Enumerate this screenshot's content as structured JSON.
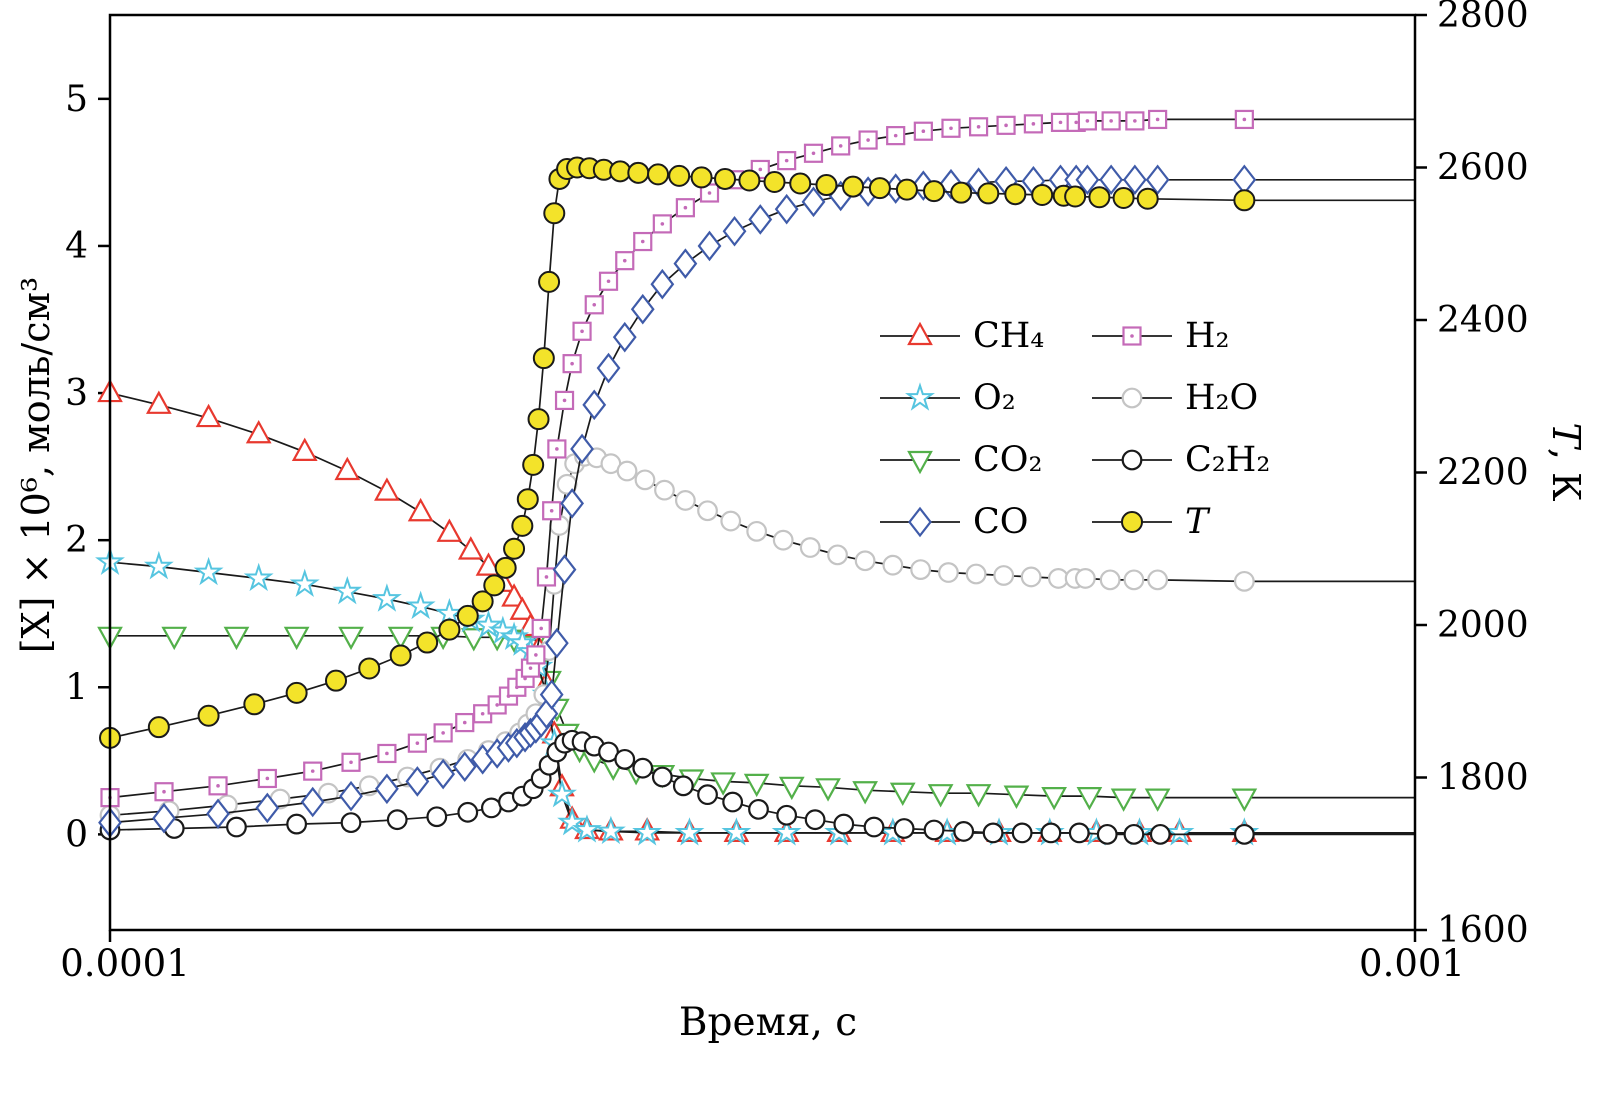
{
  "chart_data": {
    "type": "line",
    "title": "",
    "xlabel": "Время, с",
    "ylabel_left": "[X] × 10⁶, моль/см³",
    "ylabel_right_italic": "T",
    "ylabel_right_rest": ", К",
    "x_scale": "log",
    "x_min": 0.0001,
    "x_max": 0.001,
    "x_unit": 0.0001,
    "x_tick_labels": [
      "0.0001",
      "0.001"
    ],
    "x_tick_values": [
      0.0001,
      0.001
    ],
    "y_left_min": -0.65,
    "y_left_max": 5.57,
    "y_left_ticks": [
      0,
      1,
      2,
      3,
      4,
      5
    ],
    "y_right_min": 1600,
    "y_right_max": 2800,
    "y_right_ticks": [
      1600,
      1800,
      2000,
      2200,
      2400,
      2600,
      2800
    ],
    "grid": false,
    "legend_position": "center-right",
    "line_color": "#1a1a1a",
    "series": [
      {
        "name": "CO2",
        "label": "CO₂",
        "marker": "triangle-down",
        "color": "#53b04a",
        "axis": "left",
        "x": [
          1.0,
          1.12,
          1.25,
          1.39,
          1.53,
          1.67,
          1.8,
          1.9,
          1.98,
          2.04,
          2.08,
          2.11,
          2.14,
          2.17,
          2.2,
          2.24,
          2.29,
          2.35,
          2.43,
          2.53,
          2.65,
          2.79,
          2.95,
          3.13,
          3.33,
          3.55,
          3.79,
          4.05,
          4.33,
          4.63,
          4.95,
          5.29,
          5.63,
          5.98,
          6.35,
          7.4
        ],
        "y": [
          1.35,
          1.35,
          1.35,
          1.35,
          1.35,
          1.35,
          1.35,
          1.34,
          1.34,
          1.33,
          1.32,
          1.29,
          1.2,
          1.05,
          0.86,
          0.69,
          0.58,
          0.51,
          0.46,
          0.43,
          0.41,
          0.38,
          0.36,
          0.35,
          0.33,
          0.32,
          0.3,
          0.29,
          0.28,
          0.28,
          0.27,
          0.26,
          0.26,
          0.25,
          0.25,
          0.25
        ]
      },
      {
        "name": "CH4",
        "label": "CH₄",
        "marker": "triangle-up",
        "color": "#e8392f",
        "axis": "left",
        "x": [
          1.0,
          1.09,
          1.19,
          1.3,
          1.41,
          1.52,
          1.63,
          1.73,
          1.82,
          1.89,
          1.95,
          2.0,
          2.04,
          2.07,
          2.1,
          2.13,
          2.16,
          2.19,
          2.22,
          2.26,
          2.32,
          2.42,
          2.58,
          2.78,
          3.02,
          3.3,
          3.62,
          3.98,
          4.38,
          4.8,
          5.25,
          5.7,
          6.15,
          6.6,
          7.4
        ],
        "y": [
          3.0,
          2.92,
          2.83,
          2.72,
          2.6,
          2.47,
          2.33,
          2.19,
          2.05,
          1.93,
          1.82,
          1.71,
          1.61,
          1.52,
          1.41,
          1.26,
          1.02,
          0.68,
          0.32,
          0.1,
          0.03,
          0.02,
          0.02,
          0.01,
          0.01,
          0.01,
          0.01,
          0.01,
          0.01,
          0.01,
          0.01,
          0.01,
          0.01,
          0.01,
          0.01
        ]
      },
      {
        "name": "O2",
        "label": "O₂",
        "marker": "star",
        "color": "#56c5e0",
        "axis": "left",
        "x": [
          1.0,
          1.09,
          1.19,
          1.3,
          1.41,
          1.52,
          1.63,
          1.73,
          1.82,
          1.89,
          1.95,
          2.0,
          2.04,
          2.07,
          2.1,
          2.13,
          2.16,
          2.19,
          2.22,
          2.26,
          2.32,
          2.42,
          2.58,
          2.78,
          3.02,
          3.3,
          3.62,
          3.98,
          4.38,
          4.8,
          5.25,
          5.7,
          6.15,
          6.6,
          7.4
        ],
        "y": [
          1.85,
          1.82,
          1.78,
          1.74,
          1.7,
          1.65,
          1.6,
          1.55,
          1.5,
          1.46,
          1.42,
          1.38,
          1.34,
          1.3,
          1.24,
          1.14,
          0.95,
          0.62,
          0.27,
          0.08,
          0.03,
          0.02,
          0.01,
          0.01,
          0.01,
          0.01,
          0.01,
          0.01,
          0.01,
          0.01,
          0.01,
          0.01,
          0.01,
          0.01,
          0.01
        ]
      },
      {
        "name": "C2H2",
        "label": "C₂H₂",
        "marker": "circle",
        "color": "#1a1a1a",
        "axis": "left",
        "x": [
          1.0,
          1.12,
          1.25,
          1.39,
          1.53,
          1.66,
          1.78,
          1.88,
          1.96,
          2.02,
          2.07,
          2.11,
          2.14,
          2.17,
          2.2,
          2.23,
          2.26,
          2.3,
          2.35,
          2.41,
          2.48,
          2.56,
          2.65,
          2.75,
          2.87,
          3.0,
          3.14,
          3.3,
          3.47,
          3.65,
          3.85,
          4.06,
          4.28,
          4.51,
          4.75,
          5.0,
          5.26,
          5.53,
          5.81,
          6.09,
          6.38,
          7.4
        ],
        "y": [
          0.03,
          0.04,
          0.05,
          0.07,
          0.08,
          0.1,
          0.12,
          0.15,
          0.18,
          0.22,
          0.26,
          0.31,
          0.38,
          0.47,
          0.56,
          0.62,
          0.64,
          0.63,
          0.6,
          0.56,
          0.51,
          0.45,
          0.39,
          0.33,
          0.27,
          0.22,
          0.17,
          0.13,
          0.1,
          0.07,
          0.05,
          0.04,
          0.03,
          0.02,
          0.01,
          0.01,
          0.01,
          0.01,
          0.0,
          0.0,
          0.0,
          0.0
        ]
      },
      {
        "name": "H2O",
        "label": "H₂O",
        "marker": "circle",
        "color": "#c4c4c4",
        "axis": "left",
        "x": [
          1.0,
          1.11,
          1.23,
          1.35,
          1.47,
          1.58,
          1.69,
          1.79,
          1.88,
          1.95,
          2.01,
          2.06,
          2.09,
          2.12,
          2.15,
          2.17,
          2.19,
          2.21,
          2.24,
          2.27,
          2.31,
          2.36,
          2.42,
          2.49,
          2.57,
          2.66,
          2.76,
          2.87,
          2.99,
          3.13,
          3.28,
          3.44,
          3.61,
          3.79,
          3.98,
          4.18,
          4.39,
          4.61,
          4.84,
          5.08,
          5.33,
          5.49,
          5.59,
          5.84,
          6.09,
          6.35,
          7.4
        ],
        "y": [
          0.13,
          0.16,
          0.2,
          0.24,
          0.28,
          0.33,
          0.39,
          0.45,
          0.51,
          0.57,
          0.63,
          0.69,
          0.75,
          0.82,
          0.95,
          1.25,
          1.7,
          2.1,
          2.38,
          2.52,
          2.57,
          2.56,
          2.52,
          2.47,
          2.41,
          2.34,
          2.27,
          2.2,
          2.13,
          2.06,
          2.0,
          1.95,
          1.9,
          1.86,
          1.83,
          1.8,
          1.78,
          1.77,
          1.76,
          1.75,
          1.74,
          1.74,
          1.74,
          1.73,
          1.73,
          1.73,
          1.72
        ]
      },
      {
        "name": "H2",
        "label": "H₂",
        "marker": "square-dot",
        "color": "#c46ab8",
        "axis": "left",
        "x": [
          1.0,
          1.1,
          1.21,
          1.32,
          1.43,
          1.53,
          1.63,
          1.72,
          1.8,
          1.87,
          1.93,
          1.98,
          2.02,
          2.05,
          2.08,
          2.1,
          2.12,
          2.14,
          2.16,
          2.18,
          2.2,
          2.23,
          2.26,
          2.3,
          2.35,
          2.41,
          2.48,
          2.56,
          2.65,
          2.76,
          2.88,
          3.01,
          3.15,
          3.3,
          3.46,
          3.63,
          3.81,
          4.0,
          4.2,
          4.41,
          4.63,
          4.86,
          5.1,
          5.35,
          5.5,
          5.61,
          5.85,
          6.1,
          6.35,
          7.4
        ],
        "y": [
          0.25,
          0.29,
          0.33,
          0.38,
          0.43,
          0.49,
          0.55,
          0.62,
          0.69,
          0.76,
          0.82,
          0.88,
          0.94,
          1.0,
          1.06,
          1.13,
          1.22,
          1.4,
          1.75,
          2.2,
          2.62,
          2.95,
          3.2,
          3.42,
          3.6,
          3.76,
          3.9,
          4.03,
          4.15,
          4.26,
          4.36,
          4.45,
          4.52,
          4.58,
          4.63,
          4.68,
          4.72,
          4.75,
          4.78,
          4.8,
          4.81,
          4.82,
          4.83,
          4.84,
          4.84,
          4.85,
          4.85,
          4.85,
          4.86,
          4.86
        ]
      },
      {
        "name": "CO",
        "label": "CO",
        "marker": "diamond",
        "color": "#3f5ba9",
        "axis": "left",
        "x": [
          1.0,
          1.1,
          1.21,
          1.32,
          1.43,
          1.53,
          1.63,
          1.72,
          1.8,
          1.87,
          1.93,
          1.98,
          2.02,
          2.05,
          2.08,
          2.1,
          2.12,
          2.14,
          2.16,
          2.18,
          2.2,
          2.23,
          2.26,
          2.3,
          2.35,
          2.41,
          2.48,
          2.56,
          2.65,
          2.76,
          2.88,
          3.01,
          3.15,
          3.3,
          3.46,
          3.63,
          3.81,
          4.0,
          4.2,
          4.41,
          4.63,
          4.86,
          5.1,
          5.35,
          5.5,
          5.61,
          5.85,
          6.1,
          6.35,
          7.4
        ],
        "y": [
          0.08,
          0.11,
          0.14,
          0.18,
          0.22,
          0.26,
          0.31,
          0.36,
          0.41,
          0.46,
          0.51,
          0.55,
          0.59,
          0.62,
          0.66,
          0.69,
          0.72,
          0.76,
          0.82,
          0.95,
          1.3,
          1.8,
          2.25,
          2.62,
          2.92,
          3.17,
          3.38,
          3.57,
          3.74,
          3.88,
          4.0,
          4.1,
          4.18,
          4.25,
          4.3,
          4.34,
          4.37,
          4.39,
          4.41,
          4.42,
          4.43,
          4.44,
          4.44,
          4.45,
          4.45,
          4.45,
          4.45,
          4.45,
          4.45,
          4.45
        ]
      },
      {
        "name": "T",
        "label": "T",
        "marker": "circle-filled",
        "color": "#f3e32a",
        "axis": "right",
        "x": [
          1.0,
          1.09,
          1.19,
          1.29,
          1.39,
          1.49,
          1.58,
          1.67,
          1.75,
          1.82,
          1.88,
          1.93,
          1.97,
          2.01,
          2.04,
          2.07,
          2.09,
          2.11,
          2.13,
          2.15,
          2.17,
          2.19,
          2.21,
          2.24,
          2.28,
          2.33,
          2.39,
          2.46,
          2.54,
          2.63,
          2.73,
          2.84,
          2.96,
          3.09,
          3.23,
          3.38,
          3.54,
          3.71,
          3.89,
          4.08,
          4.28,
          4.49,
          4.71,
          4.94,
          5.18,
          5.38,
          5.49,
          5.73,
          5.98,
          6.24,
          7.4
        ],
        "y": [
          1852,
          1866,
          1881,
          1896,
          1911,
          1927,
          1943,
          1960,
          1977,
          1994,
          2012,
          2031,
          2052,
          2075,
          2100,
          2130,
          2165,
          2210,
          2270,
          2350,
          2450,
          2540,
          2585,
          2598,
          2600,
          2599,
          2597,
          2595,
          2593,
          2591,
          2589,
          2587,
          2585,
          2583,
          2581,
          2579,
          2577,
          2575,
          2573,
          2571,
          2569,
          2567,
          2566,
          2565,
          2564,
          2563,
          2562,
          2561,
          2560,
          2559,
          2557
        ]
      }
    ],
    "legend": [
      {
        "series": "CH4",
        "label": "CH₄"
      },
      {
        "series": "H2",
        "label": "H₂"
      },
      {
        "series": "O2",
        "label": "O₂"
      },
      {
        "series": "H2O",
        "label": "H₂O"
      },
      {
        "series": "CO2",
        "label": "CO₂"
      },
      {
        "series": "C2H2",
        "label": "C₂H₂"
      },
      {
        "series": "CO",
        "label": "CO"
      },
      {
        "series": "T",
        "label": "T",
        "italic": true
      }
    ]
  }
}
